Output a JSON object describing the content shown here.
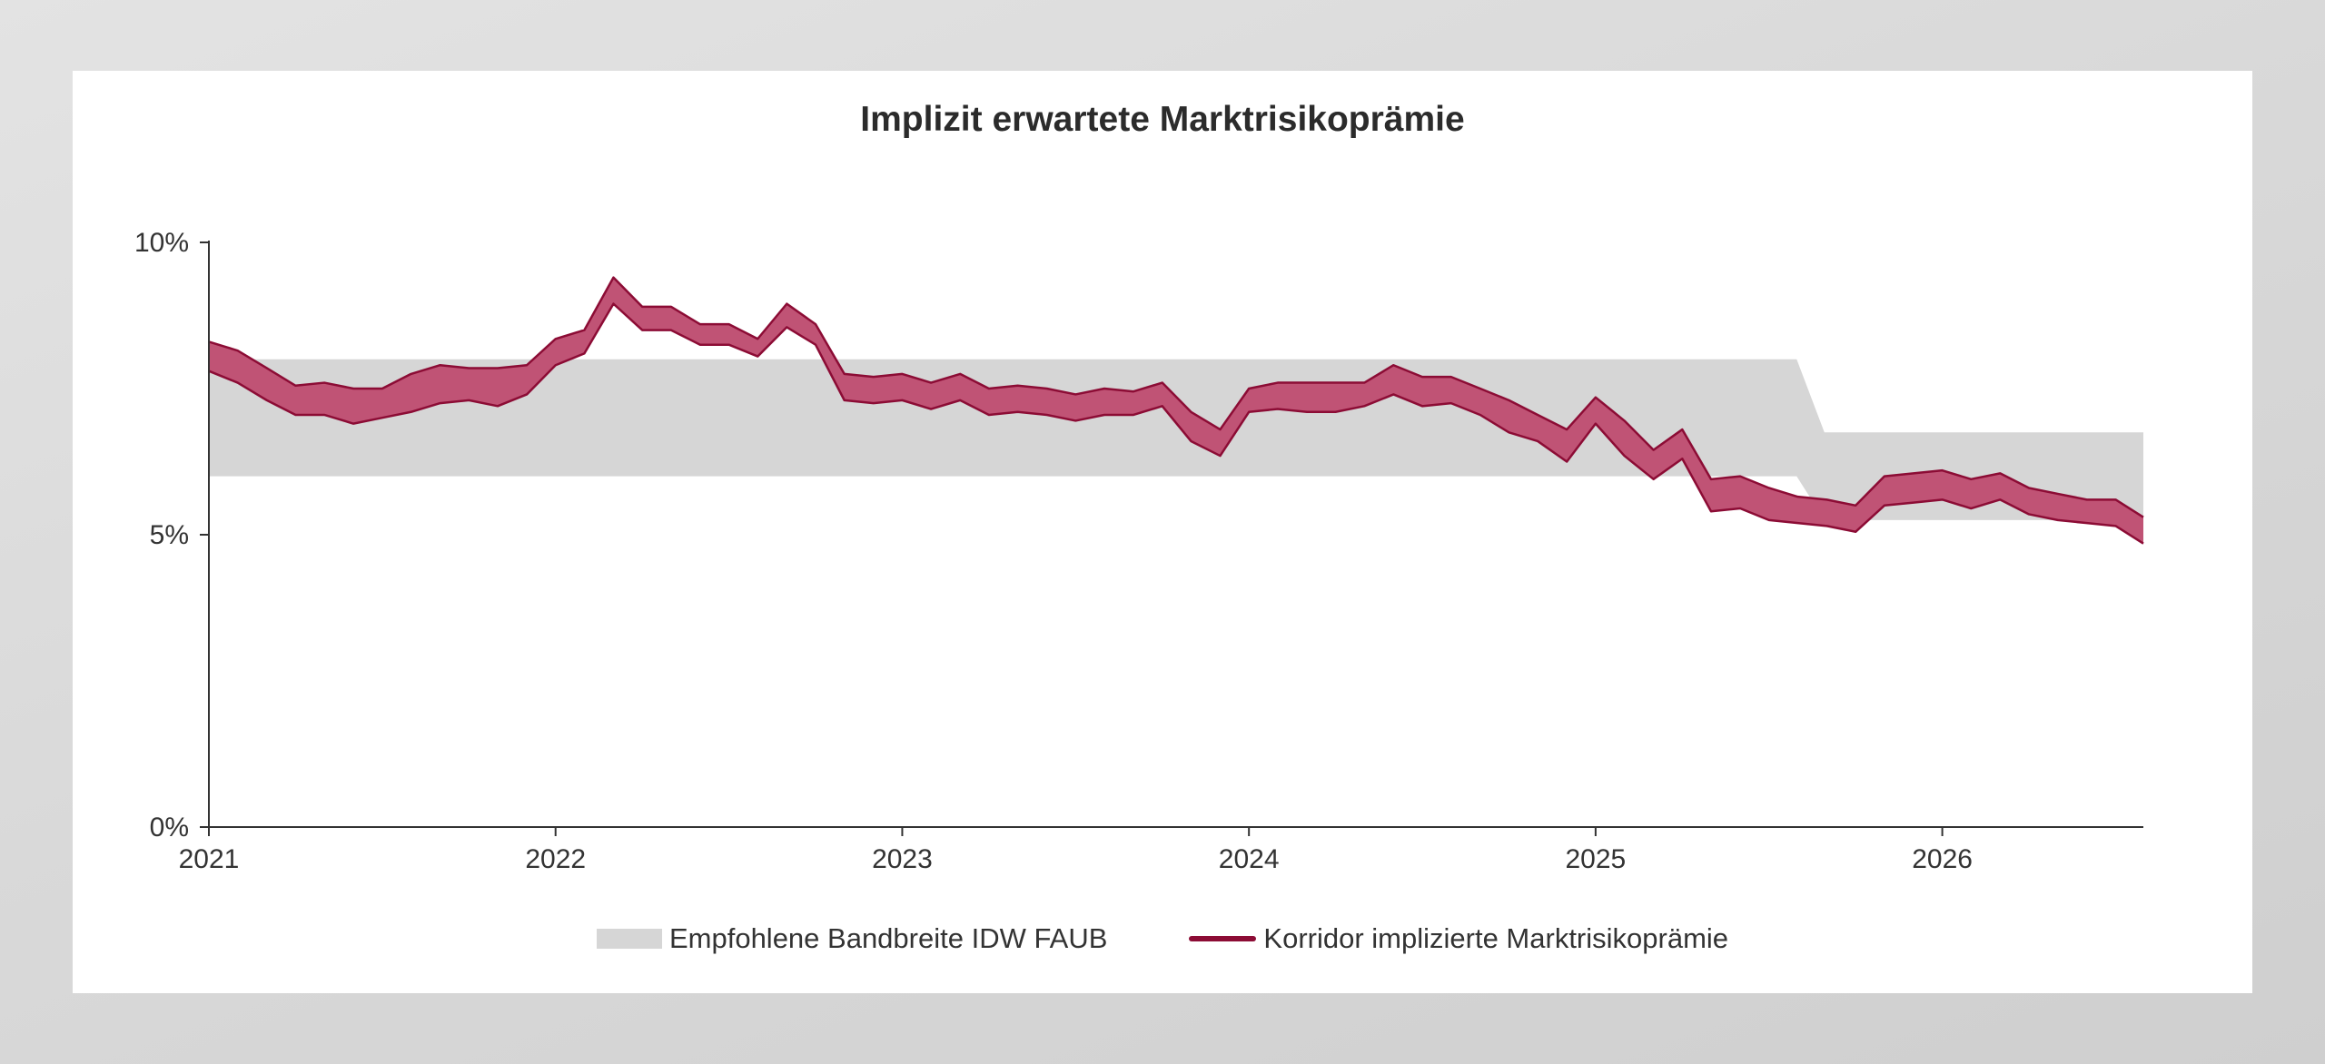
{
  "chart_data": {
    "type": "area",
    "title": "Implizit erwartete Marktrisikoprämie",
    "xlabel": "",
    "ylabel": "",
    "x_ticks": [
      "2021",
      "2022",
      "2023",
      "2024",
      "2025",
      "2026"
    ],
    "y_ticks": [
      "0%",
      "5%",
      "10%"
    ],
    "xlim": [
      2021.0,
      2026.58
    ],
    "ylim": [
      0,
      10
    ],
    "grid": false,
    "legend_position": "bottom",
    "colors": {
      "band": "#d6d6d6",
      "corridor_fill": "#c05375",
      "corridor_line": "#8c0c35"
    },
    "series": [
      {
        "name": "Empfohlene Bandbreite IDW FAUB",
        "kind": "band",
        "x": [
          2021.0,
          2025.58,
          2025.66,
          2026.58
        ],
        "lower": [
          6.0,
          6.0,
          5.25,
          5.25
        ],
        "upper": [
          8.0,
          8.0,
          6.75,
          6.75
        ]
      },
      {
        "name": "Korridor implizierte Marktrisikoprämie",
        "kind": "corridor",
        "x": [
          2021.0,
          2021.083,
          2021.167,
          2021.25,
          2021.333,
          2021.417,
          2021.5,
          2021.583,
          2021.667,
          2021.75,
          2021.833,
          2021.917,
          2022.0,
          2022.083,
          2022.167,
          2022.25,
          2022.333,
          2022.417,
          2022.5,
          2022.583,
          2022.667,
          2022.75,
          2022.833,
          2022.917,
          2023.0,
          2023.083,
          2023.167,
          2023.25,
          2023.333,
          2023.417,
          2023.5,
          2023.583,
          2023.667,
          2023.75,
          2023.833,
          2023.917,
          2024.0,
          2024.083,
          2024.167,
          2024.25,
          2024.333,
          2024.417,
          2024.5,
          2024.583,
          2024.667,
          2024.75,
          2024.833,
          2024.917,
          2025.0,
          2025.083,
          2025.167,
          2025.25,
          2025.333,
          2025.417,
          2025.5,
          2025.583,
          2025.667,
          2025.75,
          2025.833,
          2025.917,
          2026.0,
          2026.083,
          2026.167,
          2026.25,
          2026.333,
          2026.417,
          2026.5,
          2026.58
        ],
        "upper": [
          8.3,
          8.15,
          7.85,
          7.55,
          7.6,
          7.5,
          7.5,
          7.75,
          7.9,
          7.85,
          7.85,
          7.9,
          8.35,
          8.5,
          9.4,
          8.9,
          8.9,
          8.6,
          8.6,
          8.35,
          8.95,
          8.6,
          7.75,
          7.7,
          7.75,
          7.6,
          7.75,
          7.5,
          7.55,
          7.5,
          7.4,
          7.5,
          7.45,
          7.6,
          7.1,
          6.8,
          7.5,
          7.6,
          7.6,
          7.6,
          7.6,
          7.9,
          7.7,
          7.7,
          7.5,
          7.3,
          7.05,
          6.8,
          7.35,
          6.95,
          6.45,
          6.8,
          5.95,
          6.0,
          5.8,
          5.65,
          5.6,
          5.5,
          6.0,
          6.05,
          6.1,
          5.95,
          6.05,
          5.8,
          5.7,
          5.6,
          5.6,
          5.3
        ],
        "lower": [
          7.8,
          7.6,
          7.3,
          7.05,
          7.05,
          6.9,
          7.0,
          7.1,
          7.25,
          7.3,
          7.2,
          7.4,
          7.9,
          8.1,
          8.95,
          8.5,
          8.5,
          8.25,
          8.25,
          8.05,
          8.55,
          8.25,
          7.3,
          7.25,
          7.3,
          7.15,
          7.3,
          7.05,
          7.1,
          7.05,
          6.95,
          7.05,
          7.05,
          7.2,
          6.6,
          6.35,
          7.1,
          7.15,
          7.1,
          7.1,
          7.2,
          7.4,
          7.2,
          7.25,
          7.05,
          6.75,
          6.6,
          6.25,
          6.9,
          6.35,
          5.95,
          6.3,
          5.4,
          5.45,
          5.25,
          5.2,
          5.15,
          5.05,
          5.5,
          5.55,
          5.6,
          5.45,
          5.6,
          5.35,
          5.25,
          5.2,
          5.15,
          4.85
        ]
      }
    ]
  }
}
